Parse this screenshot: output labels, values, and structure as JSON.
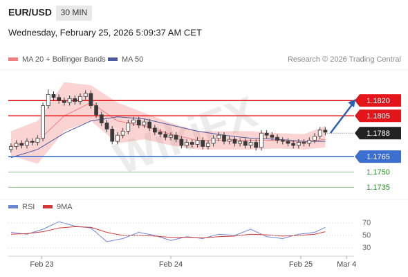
{
  "chart_data": {
    "type": "candlestick",
    "title": "EUR/USD",
    "timeframe": "30 MIN",
    "date": "Wednesday, February 25, 2026 5:09:37 AM CET",
    "copyright": "Research © 2026 Trading Central",
    "watermark": "WikiFX",
    "candle_color": "#3a3a3a",
    "ylim": [
      1.1723,
      1.185
    ],
    "xlim": [
      -0.5,
      64.4
    ],
    "xticks": [
      {
        "value": 5.8,
        "label": "Feb 23"
      },
      {
        "value": 30,
        "label": "Feb 24"
      },
      {
        "value": 54.4,
        "label": "Feb 25"
      },
      {
        "value": 63,
        "label": "Mar 4"
      }
    ],
    "open": [
      1.1772,
      1.1775,
      1.1778,
      1.1776,
      1.178,
      1.1779,
      1.1783,
      1.1815,
      1.1826,
      1.1823,
      1.182,
      1.1818,
      1.1822,
      1.1819,
      1.1824,
      1.1827,
      1.1815,
      1.1806,
      1.1798,
      1.1792,
      1.178,
      1.1786,
      1.179,
      1.1798,
      1.1801,
      1.1796,
      1.1799,
      1.1793,
      1.1789,
      1.1787,
      1.1784,
      1.1786,
      1.1782,
      1.1776,
      1.1779,
      1.1777,
      1.1781,
      1.1775,
      1.1778,
      1.1783,
      1.1786,
      1.178,
      1.1782,
      1.1778,
      1.178,
      1.1776,
      1.1779,
      1.1774,
      1.1788,
      1.1786,
      1.1784,
      1.1781,
      1.178,
      1.1778,
      1.1776,
      1.1779,
      1.1778,
      1.1781,
      1.1785,
      1.1791
    ],
    "high": [
      1.1778,
      1.1781,
      1.1781,
      1.1783,
      1.1783,
      1.1786,
      1.1818,
      1.1831,
      1.1829,
      1.1826,
      1.1823,
      1.1825,
      1.1825,
      1.1827,
      1.183,
      1.183,
      1.1818,
      1.1809,
      1.1801,
      1.1795,
      1.1789,
      1.1793,
      1.1801,
      1.1804,
      1.1804,
      1.1802,
      1.1802,
      1.1796,
      1.1792,
      1.179,
      1.1789,
      1.1789,
      1.1785,
      1.1782,
      1.1782,
      1.1784,
      1.1784,
      1.1781,
      1.1786,
      1.1789,
      1.1789,
      1.1785,
      1.1785,
      1.1783,
      1.1783,
      1.1782,
      1.1782,
      1.1791,
      1.1791,
      1.1789,
      1.1787,
      1.1784,
      1.1783,
      1.1781,
      1.1782,
      1.1782,
      1.1784,
      1.1788,
      1.1794,
      1.1794
    ],
    "low": [
      1.1769,
      1.1772,
      1.1773,
      1.1773,
      1.1776,
      1.1776,
      1.178,
      1.1812,
      1.182,
      1.1817,
      1.1815,
      1.1815,
      1.1816,
      1.1816,
      1.1821,
      1.1812,
      1.1803,
      1.1795,
      1.1789,
      1.1777,
      1.1777,
      1.1783,
      1.1787,
      1.1795,
      1.1793,
      1.1793,
      1.179,
      1.1786,
      1.1784,
      1.1781,
      1.1781,
      1.1779,
      1.1773,
      1.1773,
      1.1774,
      1.1774,
      1.1772,
      1.1772,
      1.1775,
      1.178,
      1.1777,
      1.1777,
      1.1775,
      1.1775,
      1.1773,
      1.1773,
      1.1771,
      1.1771,
      1.1783,
      1.1781,
      1.1778,
      1.1777,
      1.1775,
      1.1773,
      1.1773,
      1.1775,
      1.1775,
      1.1778,
      1.1782,
      1.1786
    ],
    "close": [
      1.1775,
      1.1778,
      1.1776,
      1.178,
      1.1779,
      1.1783,
      1.1815,
      1.1826,
      1.1823,
      1.182,
      1.1818,
      1.1822,
      1.1819,
      1.1824,
      1.1827,
      1.1815,
      1.1806,
      1.1798,
      1.1792,
      1.178,
      1.1786,
      1.179,
      1.1798,
      1.1801,
      1.1796,
      1.1799,
      1.1793,
      1.1789,
      1.1787,
      1.1784,
      1.1786,
      1.1782,
      1.1776,
      1.1779,
      1.1777,
      1.1781,
      1.1775,
      1.1778,
      1.1783,
      1.1786,
      1.178,
      1.1782,
      1.1778,
      1.178,
      1.1776,
      1.1779,
      1.1774,
      1.1788,
      1.1786,
      1.1784,
      1.1781,
      1.178,
      1.1778,
      1.1776,
      1.1779,
      1.1778,
      1.1781,
      1.1785,
      1.1791,
      1.1789
    ],
    "band": {
      "name": "MA 20 + Bollinger Bands",
      "color": "#f08080",
      "x": [
        0,
        5,
        10,
        15,
        20,
        25,
        30,
        35,
        40,
        45,
        50,
        55,
        59
      ],
      "upper": [
        1.179,
        1.18,
        1.1838,
        1.1835,
        1.1818,
        1.1808,
        1.1798,
        1.179,
        1.179,
        1.179,
        1.1788,
        1.1787,
        1.1795
      ],
      "lower": [
        1.1766,
        1.1758,
        1.179,
        1.18,
        1.1778,
        1.1782,
        1.1776,
        1.1772,
        1.1772,
        1.1772,
        1.1773,
        1.1772,
        1.1774
      ],
      "ma": [
        1.1776,
        1.178,
        1.1805,
        1.1818,
        1.18,
        1.1795,
        1.1787,
        1.1781,
        1.1781,
        1.1781,
        1.1781,
        1.1779,
        1.1782
      ]
    },
    "ma50": {
      "name": "MA 50",
      "color": "#4a5a9c",
      "x": [
        0,
        5,
        10,
        15,
        20,
        25,
        30,
        35,
        40,
        45,
        50,
        55,
        59
      ],
      "values": [
        1.1764,
        1.1772,
        1.1788,
        1.18,
        1.1804,
        1.1802,
        1.1796,
        1.179,
        1.1786,
        1.1783,
        1.1782,
        1.178,
        1.178
      ]
    },
    "levels": [
      {
        "value": 1.182,
        "label": "1.1820",
        "color": "#e3151a",
        "style": "box"
      },
      {
        "value": 1.1805,
        "label": "1.1805",
        "color": "#e3151a",
        "style": "box"
      },
      {
        "value": 1.1788,
        "label": "1.1788",
        "color": "#222222",
        "style": "current"
      },
      {
        "value": 1.1765,
        "label": "1.1765",
        "color": "#3d6fd1",
        "style": "box"
      },
      {
        "value": 1.175,
        "label": "1.1750",
        "color": "#2e8b2e",
        "style": "text"
      },
      {
        "value": 1.1735,
        "label": "1.1735",
        "color": "#2e8b2e",
        "style": "text"
      }
    ],
    "rsi": {
      "ylim": [
        15,
        90
      ],
      "yticks": [
        70,
        50,
        30
      ],
      "x": [
        0,
        3,
        6,
        9,
        12,
        15,
        18,
        21,
        24,
        27,
        30,
        33,
        36,
        39,
        42,
        45,
        48,
        51,
        54,
        57,
        59
      ],
      "series": [
        {
          "name": "RSI",
          "color": "#6a86d6",
          "values": [
            55,
            52,
            60,
            72,
            65,
            62,
            40,
            45,
            55,
            50,
            42,
            48,
            45,
            52,
            50,
            60,
            48,
            45,
            52,
            55,
            63
          ]
        },
        {
          "name": "9MA",
          "color": "#d23a3a",
          "values": [
            52,
            53,
            56,
            62,
            64,
            63,
            55,
            50,
            50,
            49,
            47,
            47,
            46,
            48,
            49,
            52,
            51,
            49,
            50,
            52,
            56
          ]
        }
      ]
    }
  }
}
